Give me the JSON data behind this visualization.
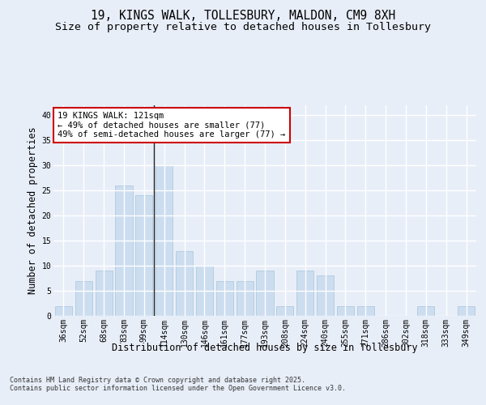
{
  "title_line1": "19, KINGS WALK, TOLLESBURY, MALDON, CM9 8XH",
  "title_line2": "Size of property relative to detached houses in Tollesbury",
  "xlabel": "Distribution of detached houses by size in Tollesbury",
  "ylabel": "Number of detached properties",
  "categories": [
    "36sqm",
    "52sqm",
    "68sqm",
    "83sqm",
    "99sqm",
    "114sqm",
    "130sqm",
    "146sqm",
    "161sqm",
    "177sqm",
    "193sqm",
    "208sqm",
    "224sqm",
    "240sqm",
    "255sqm",
    "271sqm",
    "286sqm",
    "302sqm",
    "318sqm",
    "333sqm",
    "349sqm"
  ],
  "values": [
    2,
    7,
    9,
    26,
    24,
    30,
    13,
    10,
    7,
    7,
    9,
    2,
    9,
    8,
    2,
    2,
    0,
    0,
    2,
    0,
    2
  ],
  "bar_color": "#ccddf0",
  "bar_edge_color": "#a8c4dc",
  "background_color": "#e8eef8",
  "plot_bg_color": "#e8eef8",
  "grid_color": "#ffffff",
  "annotation_box_text": "19 KINGS WALK: 121sqm\n← 49% of detached houses are smaller (77)\n49% of semi-detached houses are larger (77) →",
  "annotation_box_edge_color": "#cc0000",
  "ylim": [
    0,
    42
  ],
  "yticks": [
    0,
    5,
    10,
    15,
    20,
    25,
    30,
    35,
    40
  ],
  "footer": "Contains HM Land Registry data © Crown copyright and database right 2025.\nContains public sector information licensed under the Open Government Licence v3.0.",
  "title_fontsize": 10.5,
  "subtitle_fontsize": 9.5,
  "axis_label_fontsize": 8.5,
  "tick_fontsize": 7,
  "annotation_fontsize": 7.5,
  "footer_fontsize": 6.0
}
